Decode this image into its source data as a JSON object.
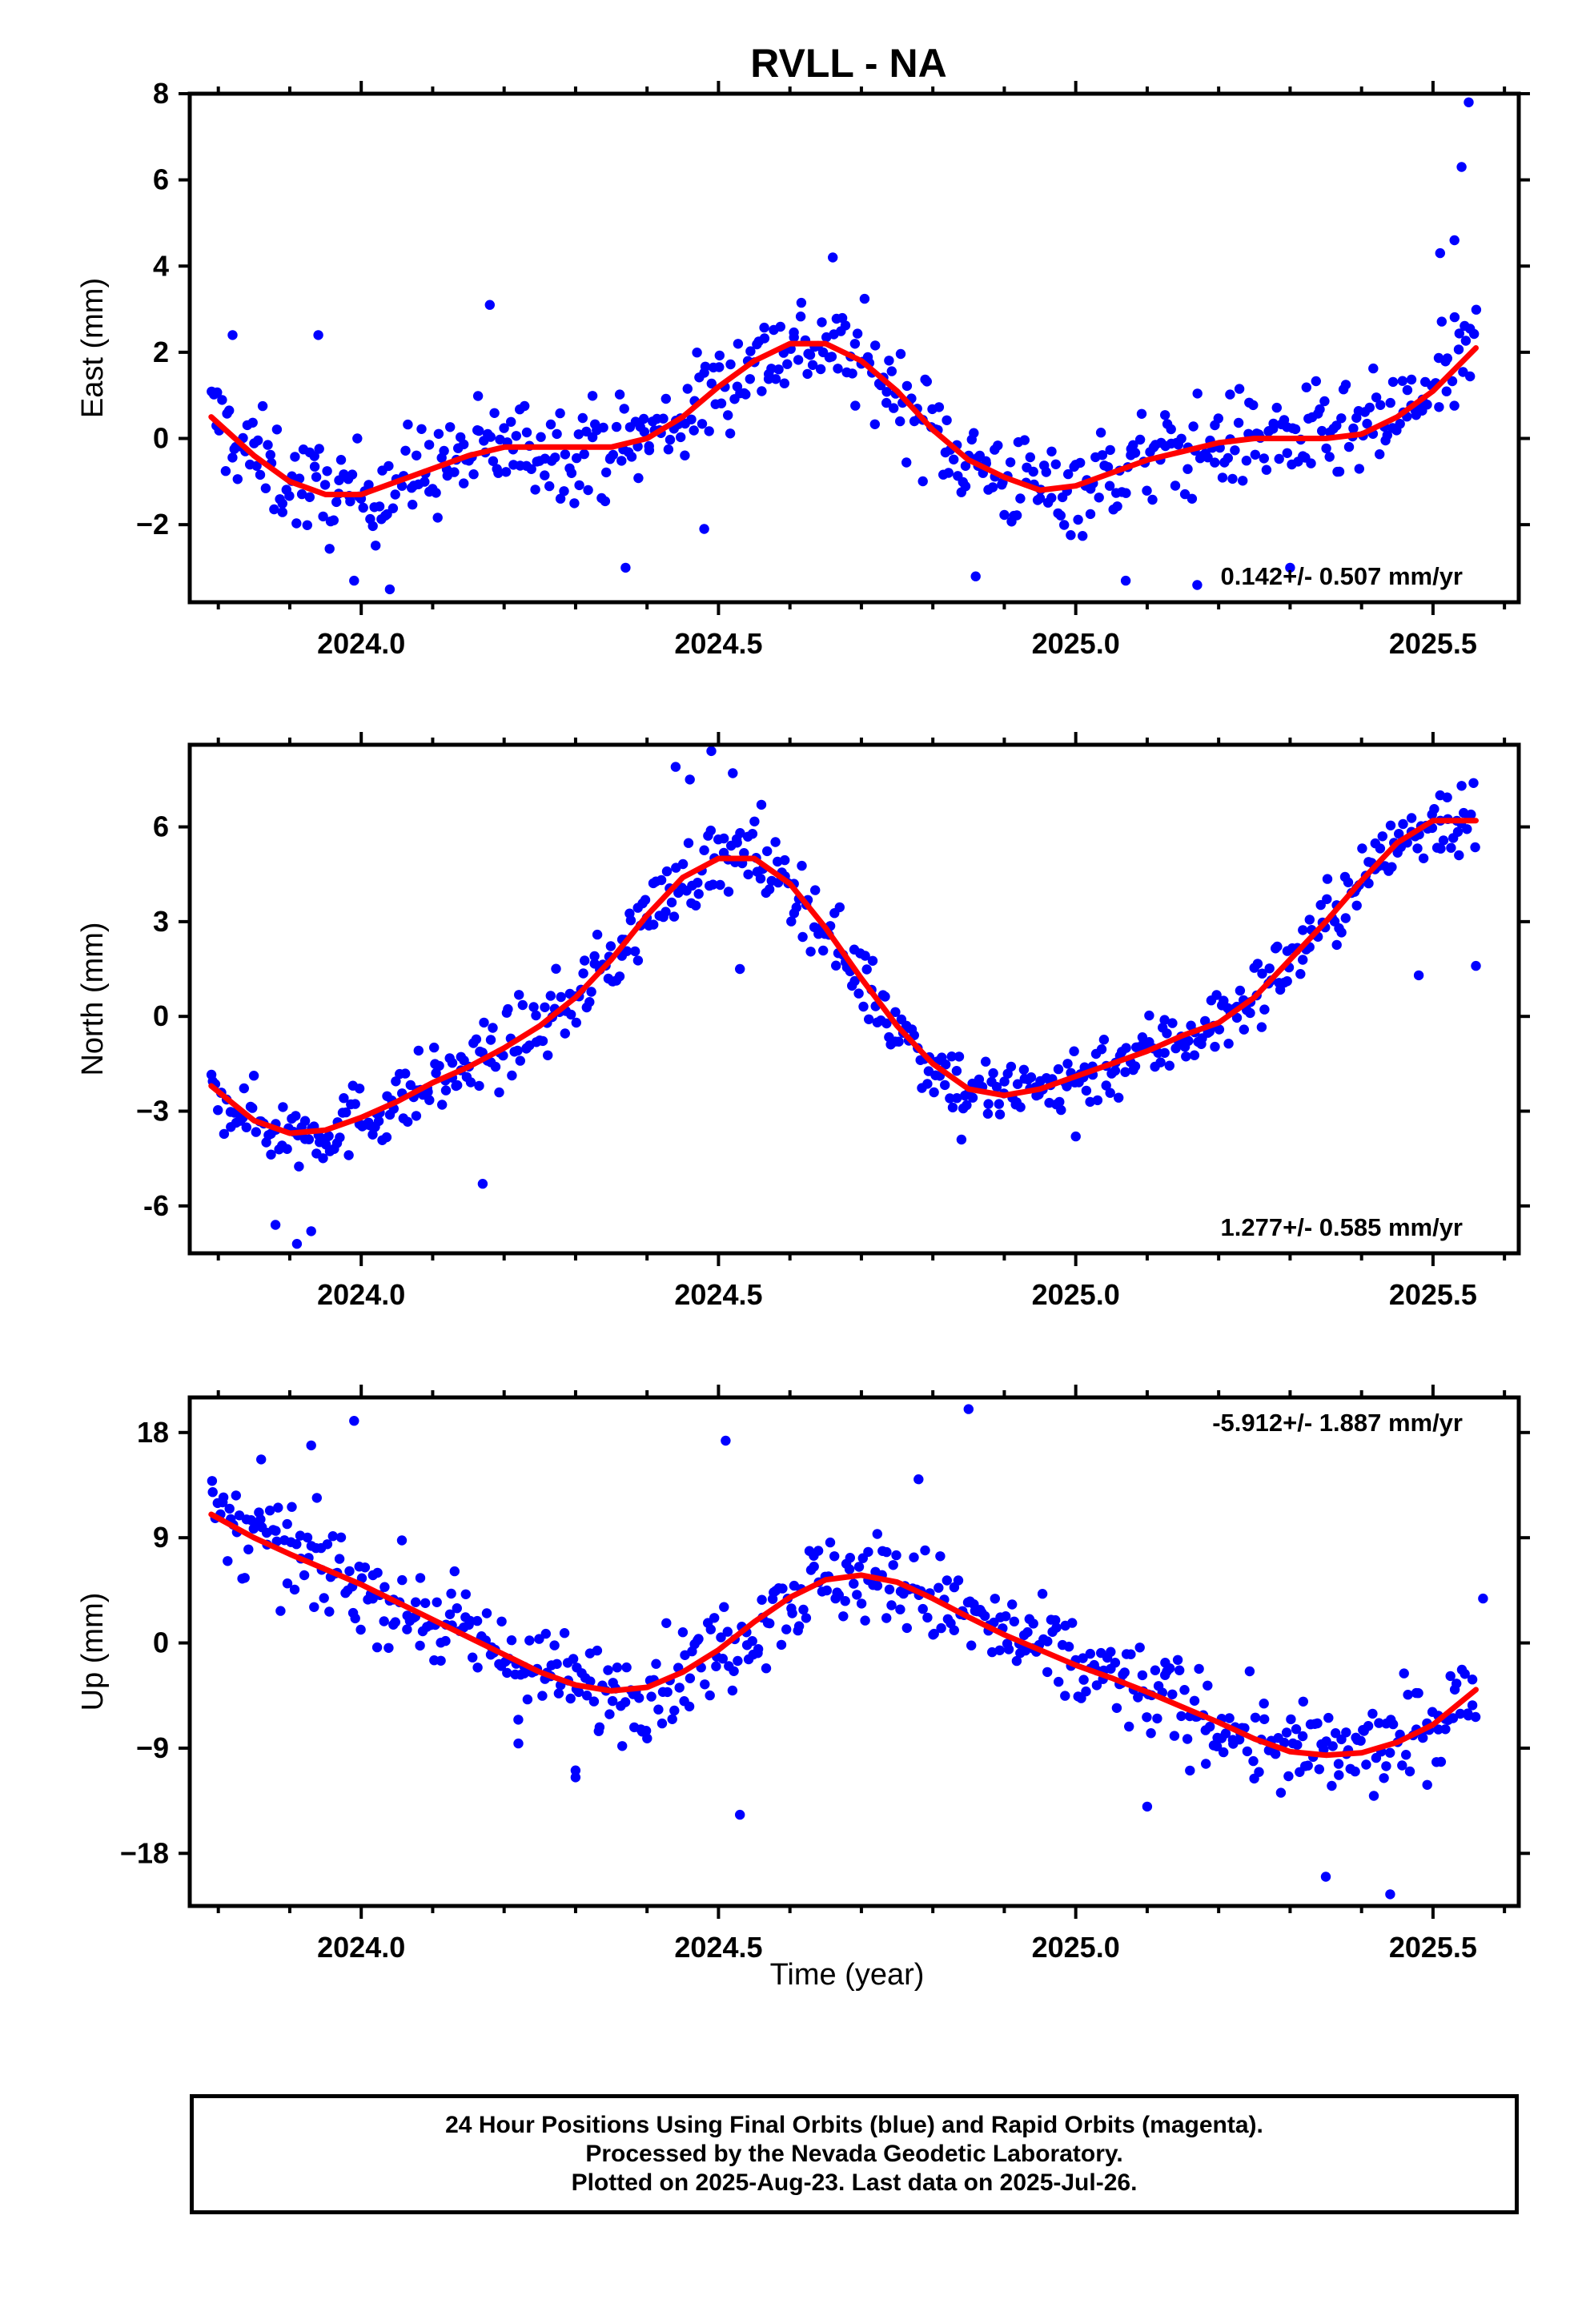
{
  "title": "RVLL - NA",
  "colors": {
    "final_points": "#0000ff",
    "fit_line": "#ff0000",
    "axes": "#000000"
  },
  "xlabel": "Time (year)",
  "x_tick_labels": [
    "2024.0",
    "2024.5",
    "2025.0",
    "2025.5"
  ],
  "caption": {
    "line1": "24 Hour Positions Using Final Orbits (blue) and Rapid Orbits (magenta).",
    "line2": "Processed by the Nevada Geodetic Laboratory.",
    "line3": "Plotted on 2025-Aug-23. Last data on 2025-Jul-26."
  },
  "chart_data": [
    {
      "type": "scatter",
      "ylabel": "East (mm)",
      "xlim": [
        2023.76,
        2025.62
      ],
      "ylim": [
        -3.8,
        8.0
      ],
      "y_ticks": [
        -2,
        0,
        2,
        4,
        6,
        8
      ],
      "y_tick_labels": [
        "−2",
        "0",
        "2",
        "4",
        "6",
        "8"
      ],
      "rate_label": "0.142+/- 0.507 mm/yr",
      "rate_position": "bottom-right",
      "fit_x": [
        2023.79,
        2023.85,
        2023.9,
        2023.95,
        2024.0,
        2024.05,
        2024.1,
        2024.15,
        2024.2,
        2024.25,
        2024.3,
        2024.35,
        2024.4,
        2024.45,
        2024.5,
        2024.55,
        2024.6,
        2024.65,
        2024.7,
        2024.75,
        2024.8,
        2024.85,
        2024.9,
        2024.95,
        2025.0,
        2025.05,
        2025.1,
        2025.15,
        2025.2,
        2025.25,
        2025.3,
        2025.35,
        2025.4,
        2025.45,
        2025.5,
        2025.56
      ],
      "fit_y": [
        0.5,
        -0.4,
        -1.0,
        -1.3,
        -1.3,
        -1.0,
        -0.7,
        -0.4,
        -0.2,
        -0.2,
        -0.2,
        -0.2,
        0.0,
        0.5,
        1.2,
        1.8,
        2.2,
        2.2,
        1.8,
        1.1,
        0.2,
        -0.5,
        -0.9,
        -1.2,
        -1.1,
        -0.8,
        -0.5,
        -0.3,
        -0.1,
        0.0,
        0.0,
        0.0,
        0.1,
        0.5,
        1.1,
        2.1
      ],
      "scatter_amplitude": 1.0,
      "extra_points": [
        [
          2025.55,
          7.8
        ],
        [
          2025.54,
          6.3
        ],
        [
          2025.53,
          4.6
        ],
        [
          2024.04,
          -3.5
        ],
        [
          2023.99,
          -3.3
        ],
        [
          2024.37,
          -3.0
        ],
        [
          2024.86,
          -3.2
        ],
        [
          2025.07,
          -3.3
        ],
        [
          2025.17,
          -3.4
        ],
        [
          2024.66,
          4.2
        ],
        [
          2023.82,
          2.4
        ],
        [
          2023.94,
          2.4
        ],
        [
          2024.18,
          3.1
        ],
        [
          2025.3,
          -3.0
        ],
        [
          2024.48,
          -2.1
        ],
        [
          2025.51,
          4.3
        ]
      ]
    },
    {
      "type": "scatter",
      "ylabel": "North (mm)",
      "xlim": [
        2023.76,
        2025.62
      ],
      "ylim": [
        -7.5,
        8.6
      ],
      "y_ticks": [
        -6,
        -3,
        0,
        3,
        6
      ],
      "y_tick_labels": [
        "-6",
        "−3",
        "0",
        "3",
        "6"
      ],
      "rate_label": "1.277+/- 0.585 mm/yr",
      "rate_position": "bottom-right",
      "fit_x": [
        2023.79,
        2023.85,
        2023.9,
        2023.95,
        2024.0,
        2024.05,
        2024.1,
        2024.15,
        2024.2,
        2024.25,
        2024.3,
        2024.35,
        2024.4,
        2024.45,
        2024.5,
        2024.55,
        2024.6,
        2024.65,
        2024.7,
        2024.75,
        2024.8,
        2024.85,
        2024.9,
        2024.95,
        2025.0,
        2025.05,
        2025.1,
        2025.15,
        2025.2,
        2025.25,
        2025.3,
        2025.35,
        2025.4,
        2025.45,
        2025.5,
        2025.56
      ],
      "fit_y": [
        -2.2,
        -3.3,
        -3.7,
        -3.6,
        -3.2,
        -2.7,
        -2.1,
        -1.6,
        -1.0,
        -0.3,
        0.6,
        1.8,
        3.2,
        4.4,
        5.0,
        5.0,
        4.2,
        2.8,
        1.2,
        -0.3,
        -1.5,
        -2.3,
        -2.5,
        -2.3,
        -1.9,
        -1.5,
        -1.1,
        -0.6,
        -0.2,
        0.6,
        1.8,
        3.0,
        4.3,
        5.5,
        6.2,
        6.2
      ],
      "scatter_amplitude": 1.0,
      "extra_points": [
        [
          2024.44,
          7.9
        ],
        [
          2024.49,
          8.4
        ],
        [
          2024.46,
          7.5
        ],
        [
          2024.52,
          7.7
        ],
        [
          2024.56,
          6.7
        ],
        [
          2023.91,
          -7.2
        ],
        [
          2023.88,
          -6.6
        ],
        [
          2023.93,
          -6.8
        ],
        [
          2024.17,
          -5.3
        ],
        [
          2024.53,
          1.5
        ],
        [
          2024.84,
          -3.9
        ],
        [
          2025.0,
          -3.8
        ],
        [
          2025.51,
          7.0
        ],
        [
          2025.54,
          7.3
        ],
        [
          2025.56,
          1.6
        ],
        [
          2025.48,
          1.3
        ]
      ]
    },
    {
      "type": "scatter",
      "ylabel": "Up (mm)",
      "xlim": [
        2023.76,
        2025.62
      ],
      "ylim": [
        -22.5,
        21.0
      ],
      "y_ticks": [
        -18,
        -9,
        0,
        9,
        18
      ],
      "y_tick_labels": [
        "−18",
        "−9",
        "0",
        "9",
        "18"
      ],
      "rate_label": "-5.912+/- 1.887 mm/yr",
      "rate_position": "top-right",
      "fit_x": [
        2023.79,
        2023.85,
        2023.9,
        2023.95,
        2024.0,
        2024.05,
        2024.1,
        2024.15,
        2024.2,
        2024.25,
        2024.3,
        2024.35,
        2024.4,
        2024.45,
        2024.5,
        2024.55,
        2024.6,
        2024.65,
        2024.7,
        2024.75,
        2024.8,
        2024.85,
        2024.9,
        2024.95,
        2025.0,
        2025.05,
        2025.1,
        2025.15,
        2025.2,
        2025.25,
        2025.3,
        2025.35,
        2025.4,
        2025.45,
        2025.5,
        2025.56
      ],
      "fit_y": [
        11.0,
        9.0,
        7.6,
        6.3,
        5.0,
        3.5,
        2.0,
        0.5,
        -1.0,
        -2.5,
        -3.6,
        -4.1,
        -3.8,
        -2.5,
        -0.6,
        1.8,
        3.9,
        5.4,
        5.8,
        5.2,
        3.8,
        2.2,
        0.7,
        -0.6,
        -1.9,
        -3.0,
        -4.2,
        -5.5,
        -6.8,
        -8.2,
        -9.3,
        -9.6,
        -9.4,
        -8.5,
        -7.0,
        -4.0
      ],
      "scatter_amplitude": 3.5,
      "extra_points": [
        [
          2024.85,
          20.0
        ],
        [
          2023.99,
          19.0
        ],
        [
          2024.51,
          17.3
        ],
        [
          2023.93,
          16.9
        ],
        [
          2023.86,
          15.7
        ],
        [
          2024.53,
          -14.7
        ],
        [
          2025.44,
          -21.5
        ],
        [
          2025.35,
          -20.0
        ],
        [
          2025.57,
          3.8
        ],
        [
          2024.3,
          -10.9
        ],
        [
          2024.3,
          -11.5
        ],
        [
          2024.22,
          -8.6
        ],
        [
          2025.1,
          -14.0
        ],
        [
          2024.78,
          14.0
        ]
      ]
    }
  ]
}
